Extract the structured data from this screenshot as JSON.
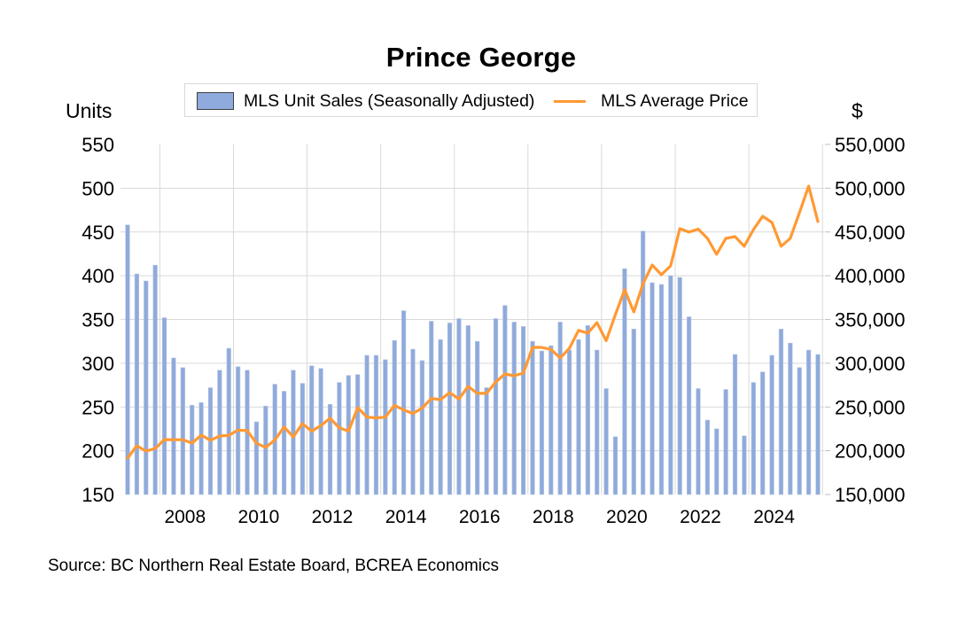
{
  "chart_data": {
    "type": "bar+line",
    "title": "Prince George",
    "legend": {
      "placement": "top-center",
      "entries": [
        {
          "label": "MLS Unit Sales (Seasonally Adjusted)",
          "kind": "bar",
          "color": "#8faadc"
        },
        {
          "label": "MLS Average Price",
          "kind": "line",
          "color": "#ff9933"
        }
      ]
    },
    "left_axis": {
      "title": "Units",
      "range": [
        150,
        550
      ],
      "ticks": [
        "550",
        "500",
        "450",
        "400",
        "350",
        "300",
        "250",
        "200",
        "150"
      ],
      "tick_values": [
        550,
        500,
        450,
        400,
        350,
        300,
        250,
        200,
        150
      ]
    },
    "right_axis": {
      "title": "$",
      "range": [
        150000,
        550000
      ],
      "ticks": [
        "550,000",
        "500,000",
        "450,000",
        "400,000",
        "350,000",
        "300,000",
        "250,000",
        "200,000",
        "150,000"
      ],
      "tick_values": [
        550000,
        500000,
        450000,
        400000,
        350000,
        300000,
        250000,
        200000,
        150000
      ]
    },
    "x_axis": {
      "period_start": "2006 Q3",
      "period_end": "2025 Q2",
      "frequency": "quarterly",
      "tick_labels": [
        "2008",
        "2010",
        "2012",
        "2014",
        "2016",
        "2018",
        "2020",
        "2022",
        "2024"
      ],
      "tick_label_index": [
        6,
        14,
        22,
        30,
        38,
        46,
        54,
        62,
        70
      ]
    },
    "grid": true,
    "series": [
      {
        "name": "MLS Unit Sales (Seasonally Adjusted)",
        "type": "bar",
        "axis": "left",
        "color": "#8faadc",
        "values": [
          458,
          402,
          394,
          412,
          352,
          306,
          295,
          252,
          255,
          272,
          292,
          317,
          296,
          292,
          233,
          251,
          276,
          268,
          292,
          277,
          297,
          294,
          253,
          278,
          286,
          287,
          309,
          309,
          304,
          326,
          360,
          316,
          303,
          348,
          327,
          346,
          351,
          343,
          325,
          272,
          351,
          366,
          347,
          342,
          325,
          314,
          320,
          347,
          315,
          327,
          343,
          315,
          271,
          216,
          408,
          339,
          451,
          392,
          390,
          400,
          398,
          353,
          271,
          235,
          225,
          270,
          310,
          217,
          278,
          290,
          309,
          339,
          323,
          295,
          315,
          310
        ]
      },
      {
        "name": "MLS Average Price",
        "type": "line",
        "axis": "right",
        "color": "#ff9933",
        "values": [
          191500,
          205700,
          199600,
          202600,
          212800,
          212600,
          212600,
          208700,
          217800,
          212000,
          216800,
          217500,
          223600,
          222900,
          208600,
          203800,
          212300,
          227200,
          215800,
          231000,
          222400,
          228800,
          237100,
          226200,
          222400,
          249200,
          238400,
          237600,
          238300,
          251900,
          246600,
          242600,
          248700,
          259800,
          258400,
          266500,
          259100,
          273500,
          265500,
          265500,
          278600,
          287700,
          285700,
          288700,
          318100,
          318100,
          315800,
          305900,
          317100,
          337500,
          334300,
          346400,
          325700,
          355600,
          384000,
          358600,
          391000,
          412300,
          401100,
          411300,
          453800,
          449800,
          453300,
          442700,
          424400,
          442700,
          444700,
          433600,
          452800,
          467900,
          460900,
          433600,
          442700,
          472000,
          502400,
          461900
        ]
      }
    ],
    "source": "Source:  BC Northern Real Estate Board, BCREA Economics"
  }
}
